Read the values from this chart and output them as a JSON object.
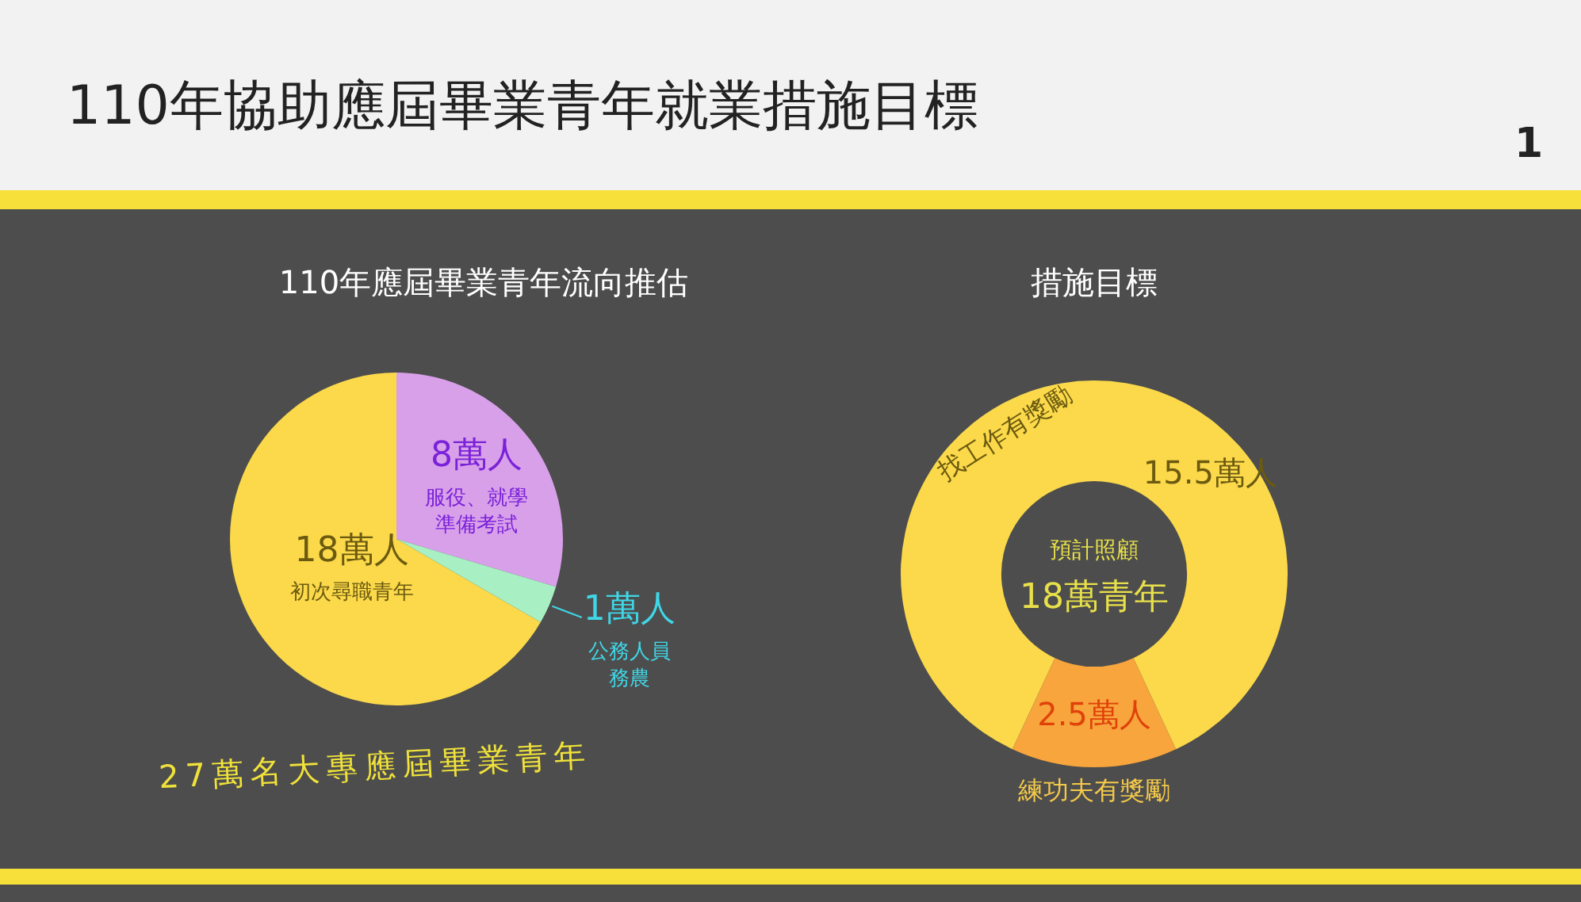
{
  "chart_data": [
    {
      "type": "pie",
      "title": "110年應屆畢業青年流向推估",
      "categories": [
        "初次尋職青年",
        "服役、就學準備考試",
        "公務人員務農"
      ],
      "values": [
        18,
        8,
        1
      ],
      "value_labels": [
        "18萬人",
        "8萬人",
        "1萬人"
      ],
      "colors": [
        "#fbd94a",
        "#d9a0ea",
        "#a8f0c4"
      ],
      "legend": false,
      "annotations": [
        "110年協助應屆畢業青年就業措施目標",
        "1",
        "27萬名大專應屆畢業青年"
      ]
    },
    {
      "type": "donut",
      "title": "措施目標",
      "categories": [
        "找工作有獎勵",
        "練功夫有獎勵"
      ],
      "values": [
        15.5,
        2.5
      ],
      "value_labels": [
        "15.5萬人",
        "2.5萬人"
      ],
      "colors": [
        "#fbd94a",
        "#f7a53c"
      ],
      "legend": false,
      "annotations": [
        "預計照顧",
        "18萬青年"
      ]
    }
  ]
}
